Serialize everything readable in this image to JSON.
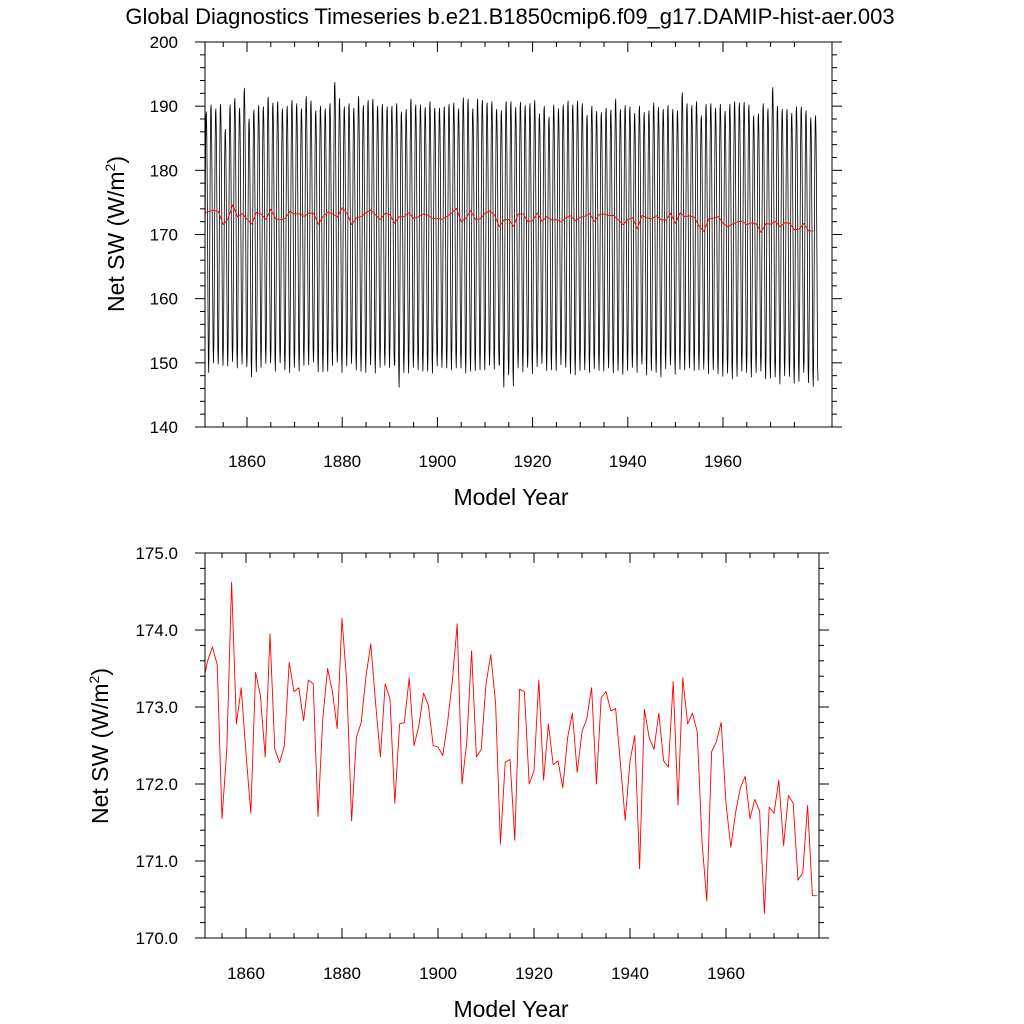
{
  "figure": {
    "title": "Global Diagnostics Timeseries b.e21.B1850cmip6.f09_g17.DAMIP-hist-aer.003"
  },
  "chart_data": [
    {
      "type": "line",
      "panel": "top",
      "xlabel": "Model Year",
      "ylabel": "Net SW (W/m",
      "ylabel_sup": "2",
      "ylabel_close": ")",
      "xlim": [
        1850,
        1979
      ],
      "ylim": [
        140,
        200
      ],
      "x_ticks": [
        1860,
        1880,
        1900,
        1920,
        1940,
        1960
      ],
      "x_tick_labels": [
        "1860",
        "1880",
        "1900",
        "1920",
        "1940",
        "1960"
      ],
      "y_ticks": [
        140,
        150,
        160,
        170,
        180,
        190,
        200
      ],
      "y_tick_labels": [
        "140",
        "150",
        "160",
        "170",
        "180",
        "190",
        "200"
      ],
      "series": [
        {
          "color": "#000000",
          "monthly": true,
          "start_year": 1850,
          "monthly_cycle": [
            152.5,
            161.2,
            172.6,
            183.0,
            188.8,
            189.5,
            186.6,
            180.2,
            171.0,
            160.8,
            151.6,
            149.3
          ],
          "annual_max": [
            187.3,
            189.1,
            190.2,
            189.6,
            190.3,
            186.4,
            190.2,
            191.2,
            189.7,
            192.8,
            188.0,
            189.4,
            190.1,
            189.9,
            191.4,
            190.5,
            190.7,
            189.6,
            190.0,
            190.9,
            190.4,
            189.6,
            191.5,
            190.8,
            189.3,
            190.0,
            189.6,
            190.4,
            193.7,
            191.2,
            189.9,
            190.4,
            189.7,
            191.5,
            190.1,
            190.9,
            191.1,
            190.0,
            190.3,
            189.9,
            190.0,
            190.4,
            189.1,
            189.5,
            191.1,
            190.2,
            190.2,
            189.8,
            190.7,
            189.7,
            189.7,
            189.9,
            190.3,
            190.5,
            189.6,
            191.3,
            191.1,
            189.6,
            191.1,
            190.9,
            190.5,
            190.7,
            189.5,
            189.3,
            190.7,
            190.7,
            189.8,
            190.6,
            190.1,
            190.4,
            190.9,
            188.8,
            190.0,
            188.3,
            190.2,
            189.6,
            190.2,
            190.8,
            190.2,
            190.8,
            190.4,
            188.6,
            190.0,
            189.2,
            189.0,
            189.7,
            189.4,
            191.1,
            189.5,
            190.1,
            189.9,
            188.9,
            190.0,
            189.0,
            189.3,
            190.5,
            189.8,
            189.5,
            190.1,
            189.5,
            189.3,
            192.1,
            190.4,
            190.1,
            190.7,
            188.5,
            190.3,
            190.4,
            189.7,
            190.3,
            189.2,
            190.3,
            190.7,
            190.5,
            190.6,
            190.2,
            188.5,
            188.8,
            190.4,
            189.6,
            192.9,
            190.0,
            189.5,
            189.5,
            188.9,
            189.9,
            189.9,
            189.3,
            188.2,
            188.5
          ],
          "annual_min": [
            151.5,
            148.5,
            150.0,
            149.8,
            149.6,
            149.5,
            150.2,
            149.2,
            149.8,
            149.4,
            147.8,
            148.6,
            149.3,
            149.9,
            150.0,
            148.7,
            150.0,
            148.9,
            148.5,
            149.3,
            148.7,
            149.6,
            149.7,
            150.1,
            148.6,
            148.6,
            148.7,
            149.6,
            150.1,
            148.5,
            149.5,
            149.9,
            148.9,
            148.7,
            148.5,
            149.7,
            148.4,
            149.3,
            149.6,
            149.3,
            149.6,
            146.2,
            148.5,
            148.4,
            149.3,
            148.9,
            148.7,
            148.7,
            148.4,
            149.5,
            149.3,
            149.2,
            148.9,
            149.2,
            149.2,
            148.4,
            148.7,
            148.8,
            148.9,
            148.9,
            149.6,
            149.0,
            149.8,
            146.2,
            148.1,
            146.4,
            149.2,
            148.6,
            149.3,
            148.3,
            149.4,
            149.9,
            148.8,
            148.9,
            148.8,
            149.7,
            149.3,
            148.3,
            148.1,
            148.8,
            148.9,
            148.5,
            149.1,
            148.8,
            148.7,
            149.2,
            148.4,
            148.8,
            148.2,
            148.8,
            149.3,
            148.5,
            149.8,
            148.1,
            148.8,
            148.5,
            147.8,
            149.1,
            149.7,
            148.2,
            149.0,
            148.9,
            149.2,
            148.8,
            148.9,
            149.0,
            148.3,
            148.9,
            148.3,
            147.9,
            148.4,
            147.5,
            147.9,
            148.7,
            148.5,
            147.8,
            148.5,
            148.7,
            147.5,
            147.6,
            147.8,
            146.7,
            148.0,
            147.9,
            146.8,
            147.1,
            148.5,
            146.9,
            146.3,
            147.2
          ]
        },
        {
          "color": "#ff0000",
          "monthly": false,
          "x": [
            1850,
            1851,
            1852,
            1853,
            1854,
            1855,
            1856,
            1857,
            1858,
            1859,
            1860,
            1861,
            1862,
            1863,
            1864,
            1865,
            1866,
            1867,
            1868,
            1869,
            1870,
            1871,
            1872,
            1873,
            1874,
            1875,
            1876,
            1877,
            1878,
            1879,
            1880,
            1881,
            1882,
            1883,
            1884,
            1885,
            1886,
            1887,
            1888,
            1889,
            1890,
            1891,
            1892,
            1893,
            1894,
            1895,
            1896,
            1897,
            1898,
            1899,
            1900,
            1901,
            1902,
            1903,
            1904,
            1905,
            1906,
            1907,
            1908,
            1909,
            1910,
            1911,
            1912,
            1913,
            1914,
            1915,
            1916,
            1917,
            1918,
            1919,
            1920,
            1921,
            1922,
            1923,
            1924,
            1925,
            1926,
            1927,
            1928,
            1929,
            1930,
            1931,
            1932,
            1933,
            1934,
            1935,
            1936,
            1937,
            1938,
            1939,
            1940,
            1941,
            1942,
            1943,
            1944,
            1945,
            1946,
            1947,
            1948,
            1949,
            1950,
            1951,
            1952,
            1953,
            1954,
            1955,
            1956,
            1957,
            1958,
            1959,
            1960,
            1961,
            1962,
            1963,
            1964,
            1965,
            1966,
            1967,
            1968,
            1969,
            1970,
            1971,
            1972,
            1973,
            1974,
            1975,
            1976,
            1977,
            1978,
            1979
          ],
          "values": [
            173.45,
            173.3,
            173.6,
            173.78,
            173.55,
            171.55,
            172.45,
            174.62,
            172.78,
            173.25,
            172.4,
            171.62,
            173.45,
            173.15,
            172.35,
            173.95,
            172.45,
            172.28,
            172.5,
            173.58,
            173.2,
            173.25,
            172.82,
            173.35,
            173.3,
            171.58,
            172.85,
            173.5,
            173.2,
            172.72,
            174.15,
            173.3,
            171.52,
            172.6,
            172.8,
            173.4,
            173.82,
            173.05,
            172.35,
            173.3,
            173.1,
            171.75,
            172.78,
            172.8,
            173.38,
            172.5,
            172.75,
            173.18,
            173.02,
            172.5,
            172.48,
            172.37,
            172.8,
            173.35,
            174.08,
            172.0,
            172.55,
            173.73,
            172.35,
            172.45,
            173.3,
            173.68,
            173.05,
            171.22,
            172.28,
            172.32,
            171.27,
            173.23,
            173.2,
            172.0,
            172.17,
            173.35,
            172.05,
            172.78,
            172.25,
            172.3,
            171.95,
            172.6,
            172.92,
            172.15,
            172.68,
            172.85,
            173.25,
            172.0,
            173.12,
            173.2,
            172.95,
            172.98,
            172.27,
            171.53,
            172.3,
            172.63,
            170.9,
            172.97,
            172.6,
            172.45,
            172.92,
            172.3,
            172.22,
            173.33,
            171.73,
            173.38,
            172.78,
            172.92,
            172.68,
            171.25,
            170.48,
            172.42,
            172.55,
            172.8,
            171.75,
            171.18,
            171.63,
            171.95,
            172.1,
            171.55,
            171.8,
            171.65,
            170.32,
            171.7,
            171.62,
            172.05,
            171.2,
            171.85,
            171.75,
            170.75,
            170.85,
            171.72,
            170.55,
            170.55
          ]
        }
      ]
    },
    {
      "type": "line",
      "panel": "bottom",
      "xlabel": "Model Year",
      "ylabel": "Net SW (W/m",
      "ylabel_sup": "2",
      "ylabel_close": ")",
      "xlim": [
        1850,
        1979
      ],
      "ylim": [
        170,
        175
      ],
      "x_ticks": [
        1860,
        1880,
        1900,
        1920,
        1940,
        1960
      ],
      "x_tick_labels": [
        "1860",
        "1880",
        "1900",
        "1920",
        "1940",
        "1960"
      ],
      "y_ticks": [
        170,
        171,
        172,
        173,
        174,
        175
      ],
      "y_tick_labels": [
        "170.0",
        "171.0",
        "172.0",
        "173.0",
        "174.0",
        "175.0"
      ],
      "series": [
        {
          "color": "#ff0000",
          "same_as_top_series": 1
        }
      ]
    }
  ]
}
